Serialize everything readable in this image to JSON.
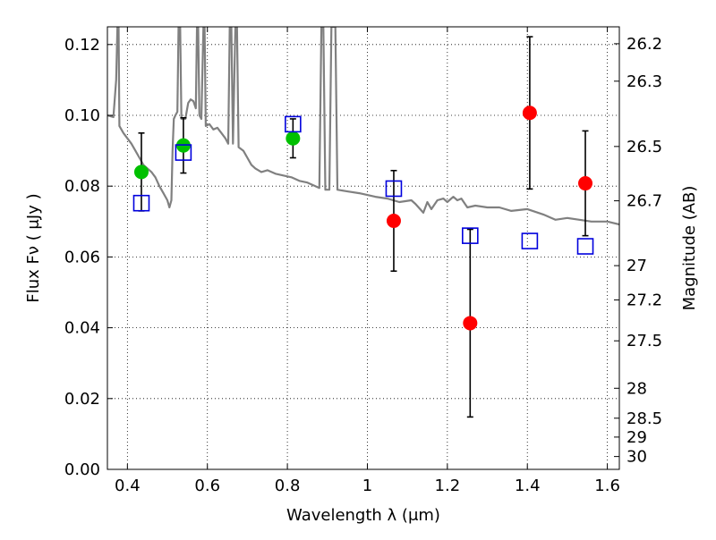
{
  "chart_data": {
    "type": "scatter",
    "xlabel": "Wavelength  λ (μm)",
    "ylabel": "Flux  Fν  ( μJy )",
    "y2label": "Magnitude (AB)",
    "xlim": [
      0.35,
      1.63
    ],
    "ylim": [
      0.0,
      0.125
    ],
    "grid": true,
    "x_ticks": [
      "0.4",
      "0.6",
      "0.8",
      "1",
      "1.2",
      "1.4",
      "1.6"
    ],
    "x_tick_values": [
      0.4,
      0.6,
      0.8,
      1.0,
      1.2,
      1.4,
      1.6
    ],
    "y_ticks": [
      "0.00",
      "0.02",
      "0.04",
      "0.06",
      "0.08",
      "0.10",
      "0.12"
    ],
    "y_tick_values": [
      0.0,
      0.02,
      0.04,
      0.06,
      0.08,
      0.1,
      0.12
    ],
    "mag_ticks": [
      {
        "label": "26.2",
        "mag": 26.2
      },
      {
        "label": "26.3",
        "mag": 26.3
      },
      {
        "label": "26.5",
        "mag": 26.5
      },
      {
        "label": "26.7",
        "mag": 26.7
      },
      {
        "label": "27",
        "mag": 27.0
      },
      {
        "label": "27.2",
        "mag": 27.2
      },
      {
        "label": "27.5",
        "mag": 27.5
      },
      {
        "label": "28",
        "mag": 28.0
      },
      {
        "label": "28.5",
        "mag": 28.5
      },
      {
        "label": "29",
        "mag": 29.0
      },
      {
        "label": "30",
        "mag": 30.0
      }
    ],
    "series": [
      {
        "marker": "circle",
        "color": "#00c000",
        "points": [
          {
            "x": 0.435,
            "y": 0.084,
            "err": 0.011
          },
          {
            "x": 0.54,
            "y": 0.0915,
            "err": 0.0078
          },
          {
            "x": 0.814,
            "y": 0.0935,
            "err": 0.0055
          }
        ]
      },
      {
        "marker": "circle",
        "color": "#ff0000",
        "points": [
          {
            "x": 1.066,
            "y": 0.0702,
            "err": 0.0142
          },
          {
            "x": 1.257,
            "y": 0.0413,
            "err": 0.0265
          },
          {
            "x": 1.406,
            "y": 0.1007,
            "err": 0.0215
          },
          {
            "x": 1.545,
            "y": 0.0808,
            "err": 0.0148
          }
        ]
      },
      {
        "marker": "open-square",
        "color": "#0000dd",
        "points": [
          {
            "x": 0.435,
            "y": 0.0752
          },
          {
            "x": 0.54,
            "y": 0.0895
          },
          {
            "x": 0.814,
            "y": 0.0975
          },
          {
            "x": 1.066,
            "y": 0.0793
          },
          {
            "x": 1.257,
            "y": 0.066
          },
          {
            "x": 1.406,
            "y": 0.0645
          },
          {
            "x": 1.545,
            "y": 0.063
          }
        ]
      },
      {
        "marker": "line",
        "color": "#808080",
        "points": [
          [
            0.35,
            0.1
          ],
          [
            0.365,
            0.0995
          ],
          [
            0.372,
            0.11
          ],
          [
            0.375,
            0.125
          ],
          [
            0.378,
            0.125
          ],
          [
            0.38,
            0.097
          ],
          [
            0.39,
            0.095
          ],
          [
            0.4,
            0.0935
          ],
          [
            0.41,
            0.092
          ],
          [
            0.42,
            0.09
          ],
          [
            0.43,
            0.088
          ],
          [
            0.44,
            0.086
          ],
          [
            0.45,
            0.085
          ],
          [
            0.46,
            0.084
          ],
          [
            0.47,
            0.0825
          ],
          [
            0.48,
            0.08
          ],
          [
            0.49,
            0.078
          ],
          [
            0.5,
            0.076
          ],
          [
            0.505,
            0.074
          ],
          [
            0.51,
            0.076
          ],
          [
            0.513,
            0.09
          ],
          [
            0.516,
            0.099
          ],
          [
            0.52,
            0.1
          ],
          [
            0.525,
            0.101
          ],
          [
            0.528,
            0.125
          ],
          [
            0.532,
            0.125
          ],
          [
            0.535,
            0.099
          ],
          [
            0.545,
            0.099
          ],
          [
            0.552,
            0.1035
          ],
          [
            0.558,
            0.1045
          ],
          [
            0.565,
            0.104
          ],
          [
            0.571,
            0.102
          ],
          [
            0.574,
            0.125
          ],
          [
            0.577,
            0.125
          ],
          [
            0.58,
            0.1
          ],
          [
            0.585,
            0.099
          ],
          [
            0.59,
            0.125
          ],
          [
            0.593,
            0.125
          ],
          [
            0.596,
            0.097
          ],
          [
            0.605,
            0.0975
          ],
          [
            0.615,
            0.096
          ],
          [
            0.625,
            0.0965
          ],
          [
            0.635,
            0.095
          ],
          [
            0.645,
            0.0935
          ],
          [
            0.652,
            0.092
          ],
          [
            0.656,
            0.125
          ],
          [
            0.66,
            0.125
          ],
          [
            0.664,
            0.092
          ],
          [
            0.67,
            0.125
          ],
          [
            0.674,
            0.125
          ],
          [
            0.678,
            0.091
          ],
          [
            0.69,
            0.09
          ],
          [
            0.7,
            0.088
          ],
          [
            0.71,
            0.086
          ],
          [
            0.72,
            0.085
          ],
          [
            0.735,
            0.084
          ],
          [
            0.75,
            0.0845
          ],
          [
            0.77,
            0.0835
          ],
          [
            0.79,
            0.083
          ],
          [
            0.81,
            0.0825
          ],
          [
            0.83,
            0.0815
          ],
          [
            0.85,
            0.081
          ],
          [
            0.87,
            0.08
          ],
          [
            0.88,
            0.0795
          ],
          [
            0.885,
            0.125
          ],
          [
            0.89,
            0.125
          ],
          [
            0.895,
            0.079
          ],
          [
            0.905,
            0.079
          ],
          [
            0.91,
            0.125
          ],
          [
            0.92,
            0.125
          ],
          [
            0.925,
            0.079
          ],
          [
            0.95,
            0.0785
          ],
          [
            0.98,
            0.078
          ],
          [
            1.0,
            0.0775
          ],
          [
            1.02,
            0.077
          ],
          [
            1.05,
            0.0765
          ],
          [
            1.08,
            0.0755
          ],
          [
            1.11,
            0.076
          ],
          [
            1.12,
            0.075
          ],
          [
            1.14,
            0.0725
          ],
          [
            1.15,
            0.0755
          ],
          [
            1.16,
            0.0735
          ],
          [
            1.175,
            0.076
          ],
          [
            1.19,
            0.0765
          ],
          [
            1.2,
            0.0755
          ],
          [
            1.215,
            0.077
          ],
          [
            1.225,
            0.076
          ],
          [
            1.235,
            0.0765
          ],
          [
            1.25,
            0.074
          ],
          [
            1.27,
            0.0745
          ],
          [
            1.3,
            0.074
          ],
          [
            1.33,
            0.074
          ],
          [
            1.36,
            0.073
          ],
          [
            1.4,
            0.0735
          ],
          [
            1.44,
            0.072
          ],
          [
            1.47,
            0.0705
          ],
          [
            1.5,
            0.071
          ],
          [
            1.53,
            0.0705
          ],
          [
            1.56,
            0.07
          ],
          [
            1.6,
            0.07
          ],
          [
            1.63,
            0.0692
          ]
        ]
      }
    ]
  }
}
